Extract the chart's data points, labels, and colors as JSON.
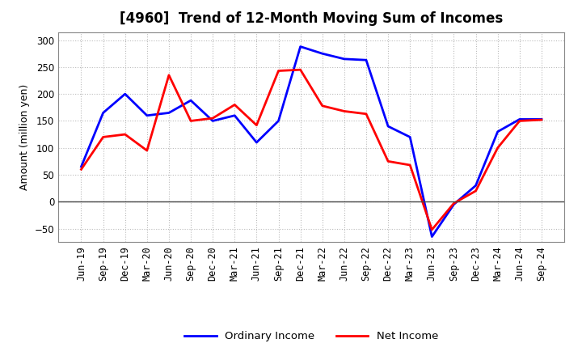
{
  "title": "[4960]  Trend of 12-Month Moving Sum of Incomes",
  "ylabel": "Amount (million yen)",
  "x_labels": [
    "Jun-19",
    "Sep-19",
    "Dec-19",
    "Mar-20",
    "Jun-20",
    "Sep-20",
    "Dec-20",
    "Mar-21",
    "Jun-21",
    "Sep-21",
    "Dec-21",
    "Mar-22",
    "Jun-22",
    "Sep-22",
    "Dec-22",
    "Mar-23",
    "Jun-23",
    "Sep-23",
    "Dec-23",
    "Mar-24",
    "Jun-24",
    "Sep-24"
  ],
  "ordinary_income": [
    65,
    165,
    200,
    160,
    165,
    188,
    150,
    160,
    110,
    150,
    288,
    275,
    265,
    263,
    140,
    120,
    -65,
    -5,
    30,
    130,
    153,
    153
  ],
  "net_income": [
    60,
    120,
    125,
    95,
    235,
    150,
    155,
    180,
    142,
    243,
    245,
    178,
    168,
    163,
    75,
    68,
    -52,
    -3,
    20,
    100,
    150,
    152
  ],
  "ordinary_color": "#0000ff",
  "net_color": "#ff0000",
  "ylim": [
    -75,
    315
  ],
  "yticks": [
    -50,
    0,
    50,
    100,
    150,
    200,
    250,
    300
  ],
  "background_color": "#ffffff",
  "plot_bg_color": "#ffffff",
  "grid_color": "#bbbbbb",
  "legend_labels": [
    "Ordinary Income",
    "Net Income"
  ],
  "title_fontsize": 12,
  "axis_fontsize": 9,
  "tick_fontsize": 8.5,
  "linewidth": 2.0
}
